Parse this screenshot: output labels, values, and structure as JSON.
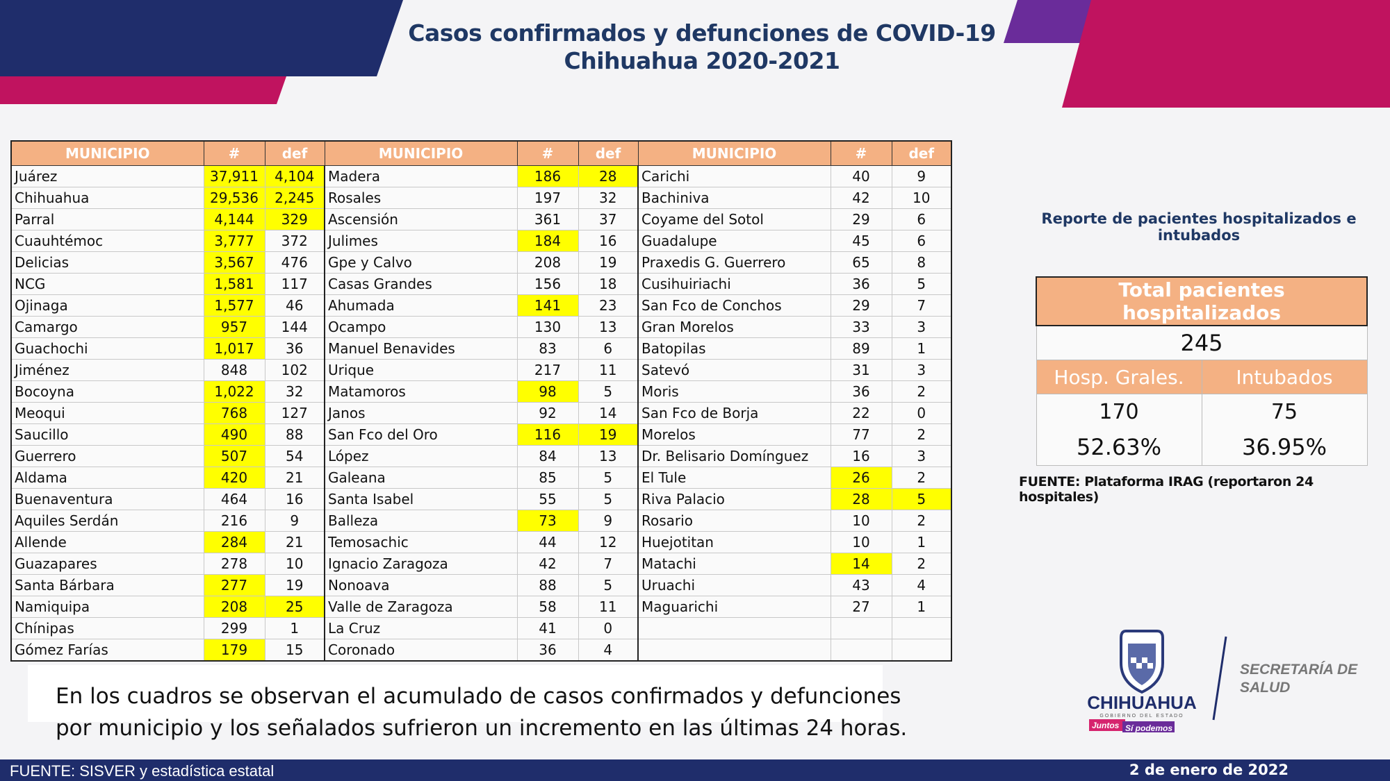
{
  "header": {
    "title_line1": "Casos confirmados y defunciones de COVID-19",
    "title_line2": "Chihuahua 2020-2021"
  },
  "colors": {
    "navy": "#1f2d6b",
    "magenta": "#c0135f",
    "purple": "#6a2c9a",
    "header_orange": "#f4b183",
    "highlight": "#ffff00",
    "title_blue": "#1f3864"
  },
  "table": {
    "headers": {
      "municipio": "MUNICIPIO",
      "cases": "#",
      "deaths": "def"
    },
    "groups": [
      [
        {
          "name": "Juárez",
          "cases": "37,911",
          "deaths": "4,104",
          "hc": true,
          "hd": true
        },
        {
          "name": "Chihuahua",
          "cases": "29,536",
          "deaths": "2,245",
          "hc": true,
          "hd": true
        },
        {
          "name": "Parral",
          "cases": "4,144",
          "deaths": "329",
          "hc": true,
          "hd": true
        },
        {
          "name": "Cuauhtémoc",
          "cases": "3,777",
          "deaths": "372",
          "hc": true,
          "hd": false
        },
        {
          "name": "Delicias",
          "cases": "3,567",
          "deaths": "476",
          "hc": true,
          "hd": false
        },
        {
          "name": "NCG",
          "cases": "1,581",
          "deaths": "117",
          "hc": true,
          "hd": false
        },
        {
          "name": "Ojinaga",
          "cases": "1,577",
          "deaths": "46",
          "hc": true,
          "hd": false
        },
        {
          "name": "Camargo",
          "cases": "957",
          "deaths": "144",
          "hc": true,
          "hd": false
        },
        {
          "name": "Guachochi",
          "cases": "1,017",
          "deaths": "36",
          "hc": true,
          "hd": false
        },
        {
          "name": "Jiménez",
          "cases": "848",
          "deaths": "102",
          "hc": false,
          "hd": false
        },
        {
          "name": "Bocoyna",
          "cases": "1,022",
          "deaths": "32",
          "hc": true,
          "hd": false
        },
        {
          "name": "Meoqui",
          "cases": "768",
          "deaths": "127",
          "hc": true,
          "hd": false
        },
        {
          "name": "Saucillo",
          "cases": "490",
          "deaths": "88",
          "hc": true,
          "hd": false
        },
        {
          "name": "Guerrero",
          "cases": "507",
          "deaths": "54",
          "hc": true,
          "hd": false
        },
        {
          "name": "Aldama",
          "cases": "420",
          "deaths": "21",
          "hc": true,
          "hd": false
        },
        {
          "name": "Buenaventura",
          "cases": "464",
          "deaths": "16",
          "hc": false,
          "hd": false
        },
        {
          "name": "Aquiles Serdán",
          "cases": "216",
          "deaths": "9",
          "hc": false,
          "hd": false
        },
        {
          "name": "Allende",
          "cases": "284",
          "deaths": "21",
          "hc": true,
          "hd": false
        },
        {
          "name": "Guazapares",
          "cases": "278",
          "deaths": "10",
          "hc": false,
          "hd": false
        },
        {
          "name": "Santa Bárbara",
          "cases": "277",
          "deaths": "19",
          "hc": true,
          "hd": false
        },
        {
          "name": "Namiquipa",
          "cases": "208",
          "deaths": "25",
          "hc": true,
          "hd": true
        },
        {
          "name": "Chínipas",
          "cases": "299",
          "deaths": "1",
          "hc": false,
          "hd": false
        },
        {
          "name": "Gómez Farías",
          "cases": "179",
          "deaths": "15",
          "hc": true,
          "hd": false
        }
      ],
      [
        {
          "name": "Madera",
          "cases": "186",
          "deaths": "28",
          "hc": true,
          "hd": true
        },
        {
          "name": "Rosales",
          "cases": "197",
          "deaths": "32",
          "hc": false,
          "hd": false
        },
        {
          "name": "Ascensión",
          "cases": "361",
          "deaths": "37",
          "hc": false,
          "hd": false
        },
        {
          "name": "Julimes",
          "cases": "184",
          "deaths": "16",
          "hc": true,
          "hd": false
        },
        {
          "name": "Gpe y Calvo",
          "cases": "208",
          "deaths": "19",
          "hc": false,
          "hd": false
        },
        {
          "name": "Casas Grandes",
          "cases": "156",
          "deaths": "18",
          "hc": false,
          "hd": false
        },
        {
          "name": "Ahumada",
          "cases": "141",
          "deaths": "23",
          "hc": true,
          "hd": false
        },
        {
          "name": "Ocampo",
          "cases": "130",
          "deaths": "13",
          "hc": false,
          "hd": false
        },
        {
          "name": "Manuel Benavides",
          "cases": "83",
          "deaths": "6",
          "hc": false,
          "hd": false
        },
        {
          "name": "Urique",
          "cases": "217",
          "deaths": "11",
          "hc": false,
          "hd": false
        },
        {
          "name": "Matamoros",
          "cases": "98",
          "deaths": "5",
          "hc": true,
          "hd": false
        },
        {
          "name": "Janos",
          "cases": "92",
          "deaths": "14",
          "hc": false,
          "hd": false
        },
        {
          "name": "San Fco del Oro",
          "cases": "116",
          "deaths": "19",
          "hc": true,
          "hd": true
        },
        {
          "name": "López",
          "cases": "84",
          "deaths": "13",
          "hc": false,
          "hd": false
        },
        {
          "name": "Galeana",
          "cases": "85",
          "deaths": "5",
          "hc": false,
          "hd": false
        },
        {
          "name": "Santa Isabel",
          "cases": "55",
          "deaths": "5",
          "hc": false,
          "hd": false
        },
        {
          "name": "Balleza",
          "cases": "73",
          "deaths": "9",
          "hc": true,
          "hd": false
        },
        {
          "name": "Temosachic",
          "cases": "44",
          "deaths": "12",
          "hc": false,
          "hd": false
        },
        {
          "name": "Ignacio Zaragoza",
          "cases": "42",
          "deaths": "7",
          "hc": false,
          "hd": false
        },
        {
          "name": "Nonoava",
          "cases": "88",
          "deaths": "5",
          "hc": false,
          "hd": false
        },
        {
          "name": "Valle de Zaragoza",
          "cases": "58",
          "deaths": "11",
          "hc": false,
          "hd": false
        },
        {
          "name": "La Cruz",
          "cases": "41",
          "deaths": "0",
          "hc": false,
          "hd": false
        },
        {
          "name": "Coronado",
          "cases": "36",
          "deaths": "4",
          "hc": false,
          "hd": false
        }
      ],
      [
        {
          "name": "Carichi",
          "cases": "40",
          "deaths": "9",
          "hc": false,
          "hd": false
        },
        {
          "name": "Bachiniva",
          "cases": "42",
          "deaths": "10",
          "hc": false,
          "hd": false
        },
        {
          "name": "Coyame del Sotol",
          "cases": "29",
          "deaths": "6",
          "hc": false,
          "hd": false
        },
        {
          "name": "Guadalupe",
          "cases": "45",
          "deaths": "6",
          "hc": false,
          "hd": false
        },
        {
          "name": "Praxedis G. Guerrero",
          "cases": "65",
          "deaths": "8",
          "hc": false,
          "hd": false
        },
        {
          "name": "Cusihuiriachi",
          "cases": "36",
          "deaths": "5",
          "hc": false,
          "hd": false
        },
        {
          "name": "San Fco de Conchos",
          "cases": "29",
          "deaths": "7",
          "hc": false,
          "hd": false
        },
        {
          "name": "Gran Morelos",
          "cases": "33",
          "deaths": "3",
          "hc": false,
          "hd": false
        },
        {
          "name": "Batopilas",
          "cases": "89",
          "deaths": "1",
          "hc": false,
          "hd": false
        },
        {
          "name": "Satevó",
          "cases": "31",
          "deaths": "3",
          "hc": false,
          "hd": false
        },
        {
          "name": "Moris",
          "cases": "36",
          "deaths": "2",
          "hc": false,
          "hd": false
        },
        {
          "name": "San Fco de Borja",
          "cases": "22",
          "deaths": "0",
          "hc": false,
          "hd": false
        },
        {
          "name": "Morelos",
          "cases": "77",
          "deaths": "2",
          "hc": false,
          "hd": false
        },
        {
          "name": "Dr. Belisario Domínguez",
          "cases": "16",
          "deaths": "3",
          "hc": false,
          "hd": false
        },
        {
          "name": "El Tule",
          "cases": "26",
          "deaths": "2",
          "hc": true,
          "hd": false
        },
        {
          "name": "Riva Palacio",
          "cases": "28",
          "deaths": "5",
          "hc": true,
          "hd": true
        },
        {
          "name": "Rosario",
          "cases": "10",
          "deaths": "2",
          "hc": false,
          "hd": false
        },
        {
          "name": "Huejotitan",
          "cases": "10",
          "deaths": "1",
          "hc": false,
          "hd": false
        },
        {
          "name": "Matachi",
          "cases": "14",
          "deaths": "2",
          "hc": true,
          "hd": false
        },
        {
          "name": "Uruachi",
          "cases": "43",
          "deaths": "4",
          "hc": false,
          "hd": false
        },
        {
          "name": "Maguarichi",
          "cases": "27",
          "deaths": "1",
          "hc": false,
          "hd": false
        },
        {
          "name": "",
          "cases": "",
          "deaths": "",
          "hc": false,
          "hd": false
        },
        {
          "name": "",
          "cases": "",
          "deaths": "",
          "hc": false,
          "hd": false
        }
      ]
    ]
  },
  "hospital": {
    "report_title": "Reporte de pacientes hospitalizados e intubados",
    "total_label": "Total pacientes hospitalizados",
    "total_value": "245",
    "general_label": "Hosp. Grales.",
    "intubated_label": "Intubados",
    "general_value": "170",
    "intubated_value": "75",
    "general_pct": "52.63%",
    "intubated_pct": "36.95%",
    "source": "FUENTE: Plataforma IRAG (reportaron 24 hospitales)"
  },
  "note": {
    "line1": "En los cuadros se observan el acumulado de casos confirmados y defunciones",
    "line2": "por municipio y los señalados sufrieron un incremento en las últimas 24 horas."
  },
  "logo": {
    "name": "CHIHUAHUA",
    "sub": "GOBIERNO DEL ESTADO",
    "slogan1": "Juntos",
    "slogan2": "Sí podemos",
    "secretaria_line1": "SECRETARÍA DE",
    "secretaria_line2": "SALUD"
  },
  "footer": {
    "source": "FUENTE: SISVER y estadística estatal",
    "date": "2 de enero de 2022"
  }
}
